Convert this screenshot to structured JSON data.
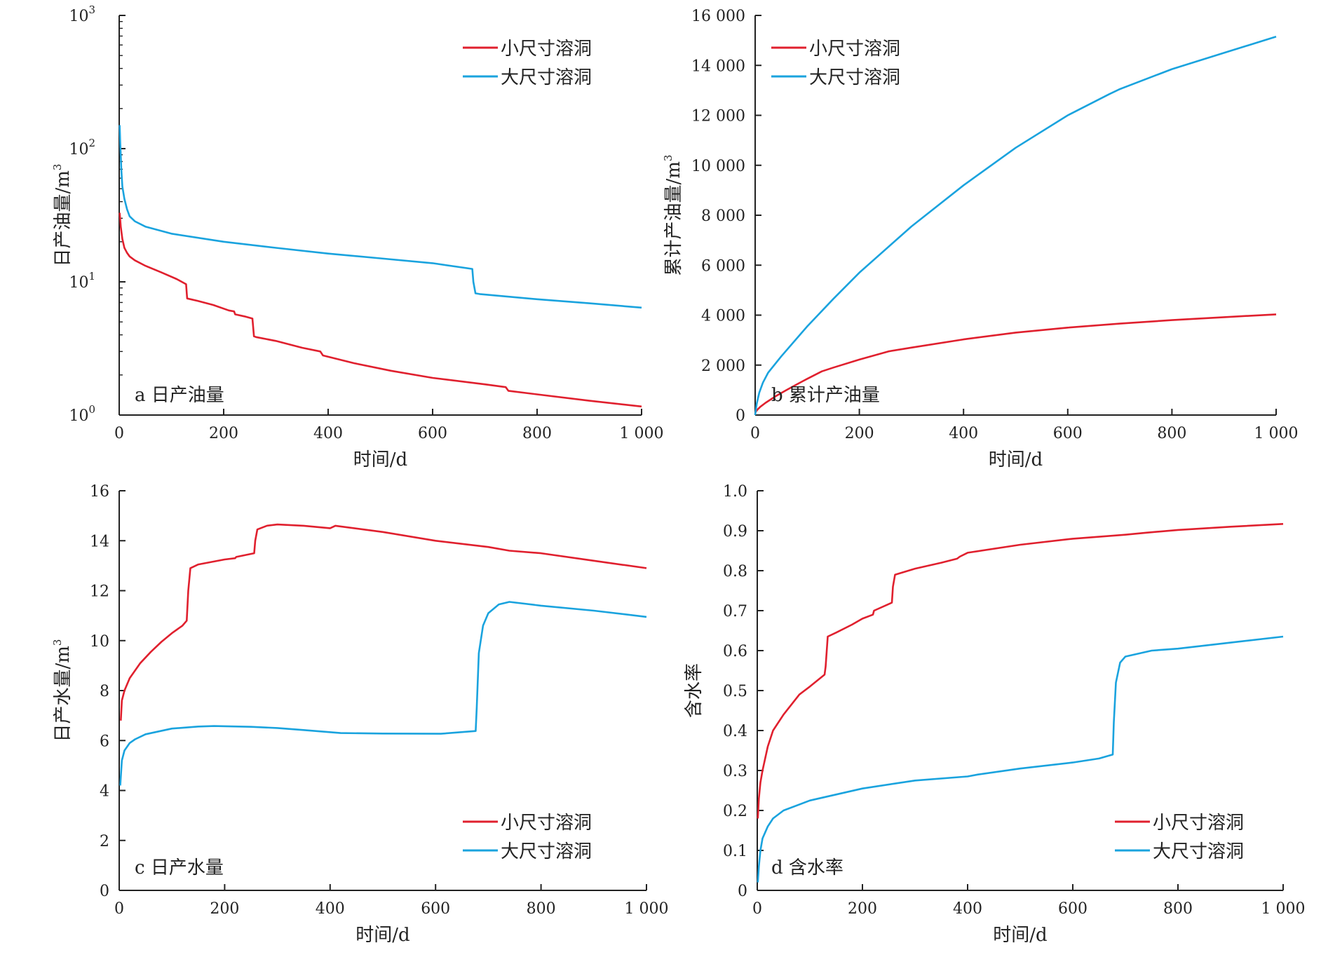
{
  "colors": {
    "small_cavity": "#e0202e",
    "large_cavity": "#1aa3de",
    "axis": "#222222"
  },
  "chart_data": [
    {
      "id": "a",
      "type": "line",
      "title": "a 日产油量",
      "xlabel": "时间/d",
      "ylabel": "日产油量/m",
      "ylabel_sup": "3",
      "xlim": [
        0,
        1000
      ],
      "ylim": [
        1,
        1000
      ],
      "yscale": "log",
      "xticks": [
        {
          "value": 0,
          "label": "0"
        },
        {
          "value": 200,
          "label": "200"
        },
        {
          "value": 400,
          "label": "400"
        },
        {
          "value": 600,
          "label": "600"
        },
        {
          "value": 800,
          "label": "800"
        },
        {
          "value": 1000,
          "label": "1 000"
        }
      ],
      "yticks": [
        {
          "value": 1,
          "base": "10",
          "exp": "0"
        },
        {
          "value": 10,
          "base": "10",
          "exp": "1"
        },
        {
          "value": 100,
          "base": "10",
          "exp": "2"
        },
        {
          "value": 1000,
          "base": "10",
          "exp": "3"
        }
      ],
      "legend_position": "top-right",
      "series": [
        {
          "name": "小尺寸溶洞",
          "color": "#e0202e",
          "x": [
            1,
            3,
            6,
            10,
            15,
            20,
            30,
            50,
            80,
            110,
            128,
            130,
            150,
            180,
            210,
            220,
            222,
            240,
            255,
            258,
            262,
            300,
            350,
            385,
            390,
            450,
            520,
            600,
            700,
            740,
            745,
            800,
            900,
            1000
          ],
          "y": [
            33,
            26,
            21,
            18,
            16.5,
            15.5,
            14.5,
            13.2,
            11.8,
            10.5,
            9.6,
            7.5,
            7.2,
            6.7,
            6.1,
            6,
            5.7,
            5.5,
            5.3,
            3.9,
            3.85,
            3.6,
            3.2,
            3.0,
            2.8,
            2.45,
            2.15,
            1.9,
            1.7,
            1.62,
            1.52,
            1.43,
            1.28,
            1.16
          ]
        },
        {
          "name": "大尺寸溶洞",
          "color": "#1aa3de",
          "x": [
            1,
            2,
            4,
            6,
            10,
            15,
            20,
            30,
            50,
            100,
            200,
            300,
            400,
            500,
            600,
            676,
            678,
            682,
            690,
            800,
            900,
            1000
          ],
          "y": [
            150,
            110,
            70,
            52,
            42,
            35,
            31,
            28.5,
            26,
            23,
            20,
            18,
            16.3,
            15,
            13.8,
            12.5,
            10,
            8.2,
            8.1,
            7.4,
            6.9,
            6.4
          ]
        }
      ]
    },
    {
      "id": "b",
      "type": "line",
      "title": "b 累计产油量",
      "xlabel": "时间/d",
      "ylabel": "累计产油量/m",
      "ylabel_sup": "3",
      "xlim": [
        0,
        1000
      ],
      "ylim": [
        0,
        16000
      ],
      "xticks": [
        {
          "value": 0,
          "label": "0"
        },
        {
          "value": 200,
          "label": "200"
        },
        {
          "value": 400,
          "label": "400"
        },
        {
          "value": 600,
          "label": "600"
        },
        {
          "value": 800,
          "label": "800"
        },
        {
          "value": 1000,
          "label": "1 000"
        }
      ],
      "yticks": [
        {
          "value": 0,
          "label": "0"
        },
        {
          "value": 2000,
          "label": "2 000"
        },
        {
          "value": 4000,
          "label": "4 000"
        },
        {
          "value": 6000,
          "label": "6 000"
        },
        {
          "value": 8000,
          "label": "8 000"
        },
        {
          "value": 10000,
          "label": "10 000"
        },
        {
          "value": 12000,
          "label": "12 000"
        },
        {
          "value": 14000,
          "label": "14 000"
        },
        {
          "value": 16000,
          "label": "16 000"
        }
      ],
      "legend_position": "top-left",
      "series": [
        {
          "name": "小尺寸溶洞",
          "color": "#e0202e",
          "x": [
            0,
            5,
            10,
            20,
            40,
            60,
            80,
            100,
            128,
            150,
            200,
            256,
            300,
            400,
            500,
            600,
            700,
            800,
            900,
            1000
          ],
          "y": [
            100,
            230,
            330,
            490,
            760,
            1000,
            1230,
            1450,
            1750,
            1900,
            2220,
            2550,
            2700,
            3030,
            3300,
            3500,
            3660,
            3800,
            3920,
            4030
          ]
        },
        {
          "name": "大尺寸溶洞",
          "color": "#1aa3de",
          "x": [
            0,
            3,
            8,
            15,
            25,
            50,
            100,
            150,
            200,
            300,
            400,
            500,
            600,
            680,
            700,
            800,
            900,
            1000
          ],
          "y": [
            0,
            450,
            900,
            1300,
            1700,
            2350,
            3550,
            4650,
            5700,
            7550,
            9200,
            10700,
            12000,
            12850,
            13050,
            13850,
            14500,
            15150
          ]
        }
      ]
    },
    {
      "id": "c",
      "type": "line",
      "title": "c 日产水量",
      "xlabel": "时间/d",
      "ylabel": "日产水量/m",
      "ylabel_sup": "3",
      "xlim": [
        0,
        1000
      ],
      "ylim": [
        0,
        16
      ],
      "xticks": [
        {
          "value": 0,
          "label": "0"
        },
        {
          "value": 200,
          "label": "200"
        },
        {
          "value": 400,
          "label": "400"
        },
        {
          "value": 600,
          "label": "600"
        },
        {
          "value": 800,
          "label": "800"
        },
        {
          "value": 1000,
          "label": "1 000"
        }
      ],
      "yticks": [
        {
          "value": 0,
          "label": "0"
        },
        {
          "value": 2,
          "label": "2"
        },
        {
          "value": 4,
          "label": "4"
        },
        {
          "value": 6,
          "label": "6"
        },
        {
          "value": 8,
          "label": "8"
        },
        {
          "value": 10,
          "label": "10"
        },
        {
          "value": 12,
          "label": "12"
        },
        {
          "value": 14,
          "label": "14"
        },
        {
          "value": 16,
          "label": "16"
        }
      ],
      "legend_position": "bottom-right",
      "series": [
        {
          "name": "小尺寸溶洞",
          "color": "#e0202e",
          "x": [
            3,
            5,
            10,
            20,
            40,
            60,
            80,
            100,
            120,
            128,
            131,
            135,
            150,
            200,
            220,
            222,
            256,
            258,
            262,
            280,
            300,
            350,
            400,
            410,
            500,
            600,
            700,
            740,
            800,
            900,
            1000
          ],
          "y": [
            6.8,
            7.6,
            8.0,
            8.5,
            9.1,
            9.55,
            9.95,
            10.3,
            10.6,
            10.8,
            12.0,
            12.9,
            13.05,
            13.25,
            13.3,
            13.35,
            13.5,
            14.0,
            14.45,
            14.6,
            14.65,
            14.6,
            14.5,
            14.6,
            14.35,
            14.0,
            13.75,
            13.6,
            13.5,
            13.2,
            12.9
          ]
        },
        {
          "name": "大尺寸溶洞",
          "color": "#1aa3de",
          "x": [
            2,
            5,
            10,
            20,
            30,
            50,
            100,
            150,
            180,
            250,
            300,
            350,
            420,
            500,
            610,
            676,
            678,
            682,
            690,
            700,
            720,
            740,
            800,
            900,
            1000
          ],
          "y": [
            4.2,
            5.2,
            5.6,
            5.9,
            6.05,
            6.25,
            6.48,
            6.56,
            6.58,
            6.55,
            6.5,
            6.42,
            6.3,
            6.28,
            6.27,
            6.38,
            7.3,
            9.5,
            10.6,
            11.1,
            11.45,
            11.55,
            11.4,
            11.2,
            10.95
          ]
        }
      ]
    },
    {
      "id": "d",
      "type": "line",
      "title": "d 含水率",
      "xlabel": "时间/d",
      "ylabel": "含水率",
      "xlim": [
        0,
        1000
      ],
      "ylim": [
        0,
        1
      ],
      "xticks": [
        {
          "value": 0,
          "label": "0"
        },
        {
          "value": 200,
          "label": "200"
        },
        {
          "value": 400,
          "label": "400"
        },
        {
          "value": 600,
          "label": "600"
        },
        {
          "value": 800,
          "label": "800"
        },
        {
          "value": 1000,
          "label": "1 000"
        }
      ],
      "yticks": [
        {
          "value": 0,
          "label": "0"
        },
        {
          "value": 0.1,
          "label": "0.1"
        },
        {
          "value": 0.2,
          "label": "0.2"
        },
        {
          "value": 0.3,
          "label": "0.3"
        },
        {
          "value": 0.4,
          "label": "0.4"
        },
        {
          "value": 0.5,
          "label": "0.5"
        },
        {
          "value": 0.6,
          "label": "0.6"
        },
        {
          "value": 0.7,
          "label": "0.7"
        },
        {
          "value": 0.8,
          "label": "0.8"
        },
        {
          "value": 0.9,
          "label": "0.9"
        },
        {
          "value": 1.0,
          "label": "1.0"
        }
      ],
      "legend_position": "bottom-right",
      "series": [
        {
          "name": "小尺寸溶洞",
          "color": "#e0202e",
          "x": [
            1,
            3,
            6,
            10,
            20,
            30,
            50,
            80,
            100,
            128,
            130,
            134,
            150,
            180,
            200,
            220,
            222,
            256,
            258,
            262,
            300,
            350,
            380,
            385,
            400,
            500,
            600,
            700,
            740,
            800,
            900,
            1000
          ],
          "y": [
            0.18,
            0.23,
            0.27,
            0.3,
            0.36,
            0.4,
            0.44,
            0.49,
            0.51,
            0.54,
            0.56,
            0.635,
            0.645,
            0.665,
            0.68,
            0.69,
            0.7,
            0.72,
            0.76,
            0.79,
            0.805,
            0.82,
            0.83,
            0.835,
            0.845,
            0.865,
            0.88,
            0.89,
            0.895,
            0.902,
            0.91,
            0.917
          ]
        },
        {
          "name": "大尺寸溶洞",
          "color": "#1aa3de",
          "x": [
            1,
            3,
            6,
            10,
            20,
            30,
            50,
            100,
            200,
            300,
            400,
            420,
            500,
            600,
            650,
            676,
            678,
            682,
            690,
            700,
            750,
            800,
            900,
            1000
          ],
          "y": [
            0.02,
            0.06,
            0.1,
            0.13,
            0.16,
            0.18,
            0.2,
            0.225,
            0.255,
            0.275,
            0.285,
            0.29,
            0.305,
            0.32,
            0.33,
            0.34,
            0.42,
            0.52,
            0.57,
            0.585,
            0.6,
            0.605,
            0.62,
            0.635
          ]
        }
      ]
    }
  ]
}
